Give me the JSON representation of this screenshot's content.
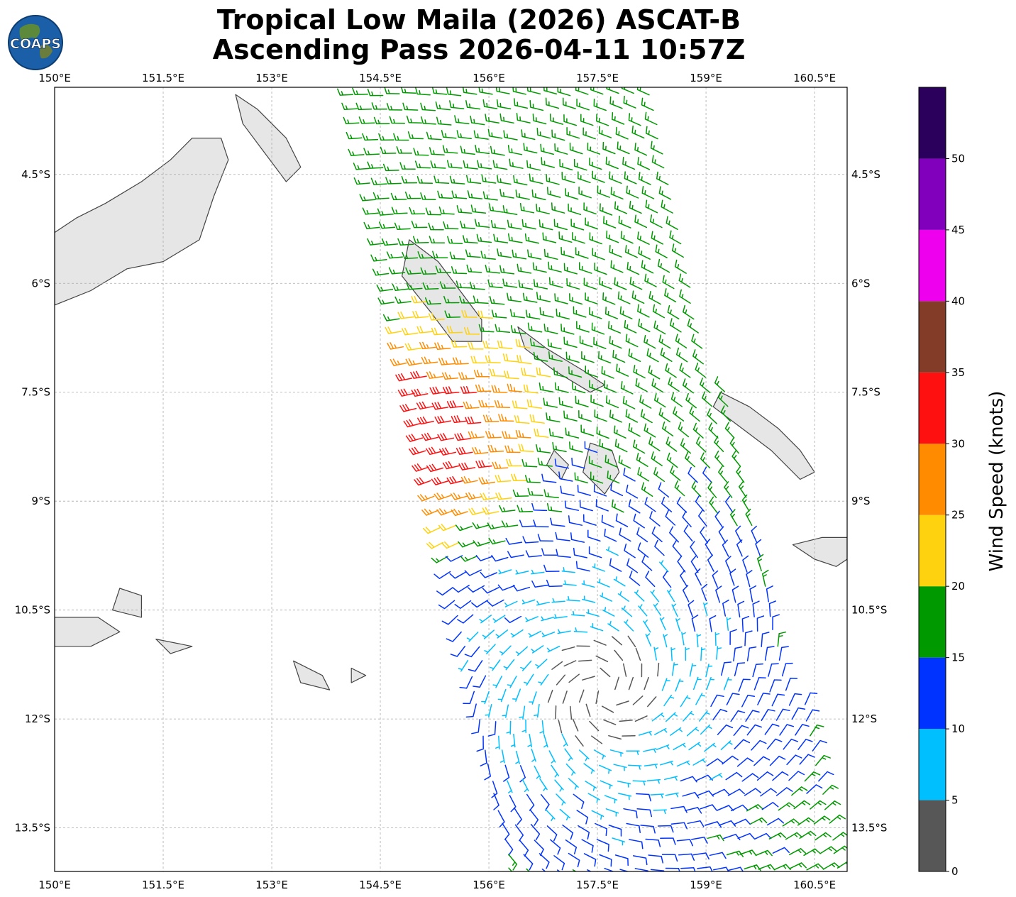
{
  "title": {
    "line1": "Tropical Low Maila (2026) ASCAT-B",
    "line2": "Ascending Pass 2026-04-11 10:57Z"
  },
  "logo": {
    "text": "COAPS",
    "icon": "globe-icon"
  },
  "map": {
    "lon_range": [
      150,
      160.95
    ],
    "lat_range": [
      -3.3,
      -14.1
    ],
    "lon_ticks": [
      "150°E",
      "151.5°E",
      "153°E",
      "154.5°E",
      "156°E",
      "157.5°E",
      "159°E",
      "160.5°E"
    ],
    "lat_ticks": [
      "4.5°S",
      "6°S",
      "7.5°S",
      "9°S",
      "10.5°S",
      "12°S",
      "13.5°S"
    ],
    "grid": true,
    "land_color": "#e6e6e6",
    "coast_color": "#444444"
  },
  "wind": {
    "center": {
      "lon": 157.6,
      "lat": -11.6
    },
    "swath": {
      "west_edge_lon_north": 154.1,
      "west_edge_lon_south": 156.3,
      "east_edge_lon_north": 158.2,
      "east_edge_lon_south": 160.95
    }
  },
  "colorbar": {
    "label": "Wind Speed (knots)",
    "ticks": [
      "0",
      "5",
      "10",
      "15",
      "20",
      "25",
      "30",
      "35",
      "40",
      "45",
      "50"
    ],
    "colors": [
      "#575757",
      "#00bfff",
      "#0033ff",
      "#009900",
      "#ffd20f",
      "#ff8c00",
      "#ff1010",
      "#833c28",
      "#ee00ee",
      "#8000bb",
      "#2a005c"
    ],
    "range": [
      0,
      55
    ]
  }
}
